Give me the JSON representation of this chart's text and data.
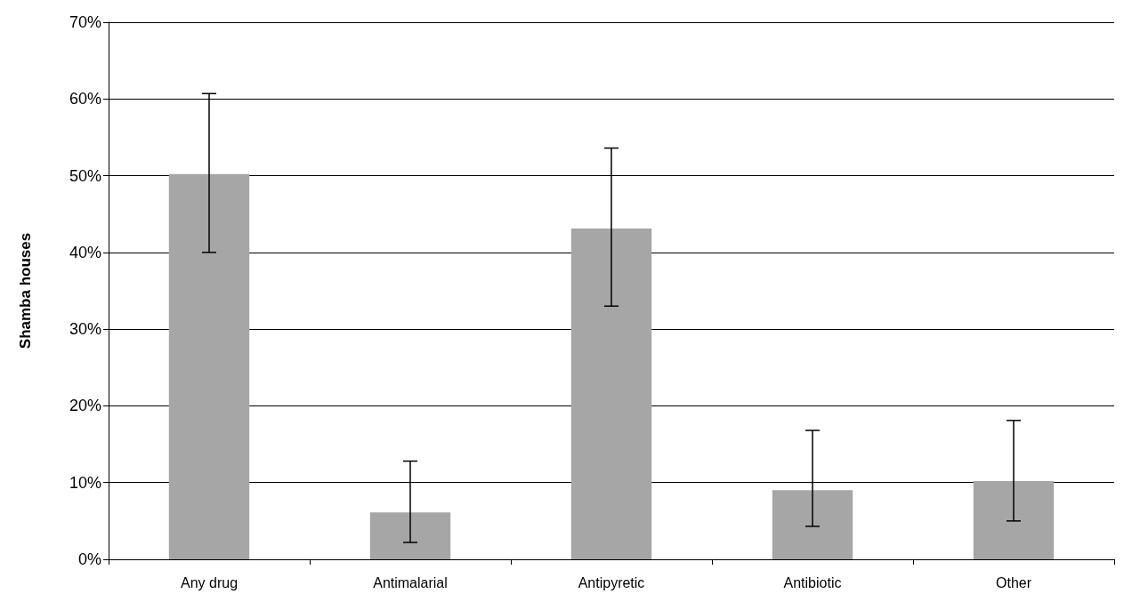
{
  "chart_data": {
    "type": "bar",
    "ylabel": "Shamba houses",
    "categories": [
      "Any drug",
      "Antimalarial",
      "Antipyretic",
      "Antibiotic",
      "Other"
    ],
    "values": [
      50.2,
      6.1,
      43.1,
      9.0,
      10.2
    ],
    "errors": [
      [
        40.0,
        60.7
      ],
      [
        2.2,
        12.8
      ],
      [
        33.0,
        53.6
      ],
      [
        4.3,
        16.8
      ],
      [
        5.0,
        18.1
      ]
    ],
    "color": "#a6a6a6",
    "ylim": [
      0,
      70
    ],
    "yticks": [
      {
        "value": 0,
        "label": "0%"
      },
      {
        "value": 10,
        "label": "10%"
      },
      {
        "value": 20,
        "label": "20%"
      },
      {
        "value": 30,
        "label": "30%"
      },
      {
        "value": 40,
        "label": "40%"
      },
      {
        "value": 50,
        "label": "50%"
      },
      {
        "value": 60,
        "label": "60%"
      },
      {
        "value": 70,
        "label": "70%"
      }
    ],
    "grid": "y"
  }
}
